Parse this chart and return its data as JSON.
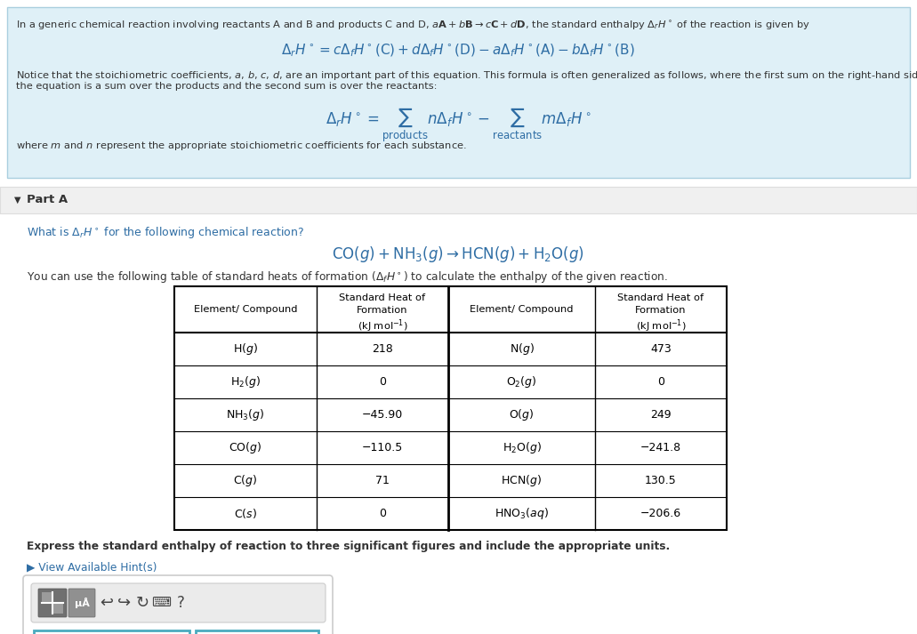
{
  "bg_top": "#dff0f7",
  "bg_white": "#ffffff",
  "text_color_dark": "#333333",
  "text_color_blue": "#2e6da4",
  "text_color_link": "#2e6da4",
  "table_data": [
    [
      "$\\mathrm{H}(g)$",
      "218",
      "$\\mathrm{N}(g)$",
      "473"
    ],
    [
      "$\\mathrm{H_2}(g)$",
      "0",
      "$\\mathrm{O_2}(g)$",
      "0"
    ],
    [
      "$\\mathrm{NH_3}(g)$",
      "−45.90",
      "$\\mathrm{O}(g)$",
      "249"
    ],
    [
      "$\\mathrm{CO}(g)$",
      "−110.5",
      "$\\mathrm{H_2O}(g)$",
      "−241.8"
    ],
    [
      "$\\mathrm{C}(g)$",
      "71",
      "$\\mathrm{HCN}(g)$",
      "130.5"
    ],
    [
      "$\\mathrm{C}(s)$",
      "0",
      "$\\mathrm{HNO_3}(aq)$",
      "−206.6"
    ]
  ],
  "input_border": "#4aabbf",
  "toolbar_bg": "#e8e8e8",
  "toolbar_border": "#cccccc",
  "value_color": "#c8a97a",
  "units_color": "#c8a97a"
}
